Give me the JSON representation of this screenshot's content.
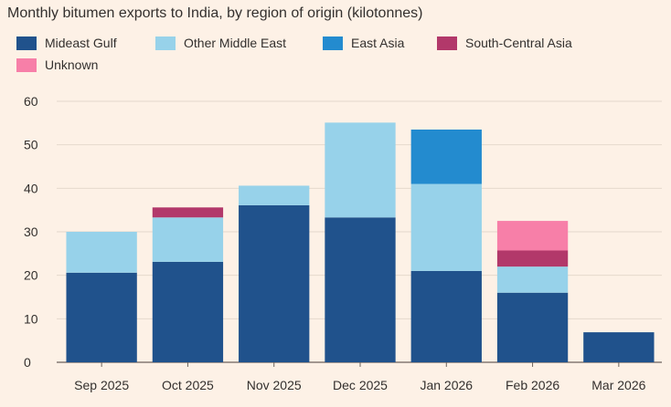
{
  "chart_data": {
    "type": "bar",
    "stacked": true,
    "title": "Monthly bitumen exports to India, by region of origin (kilotonnes)",
    "xlabel": "",
    "ylabel": "",
    "ylim": [
      0,
      60
    ],
    "yticks": [
      "0",
      "10",
      "20",
      "30",
      "40",
      "50",
      "60"
    ],
    "grid": true,
    "legend_position": "top-left",
    "categories": [
      "Sep 2025",
      "Oct 2025",
      "Nov 2025",
      "Dec 2025",
      "Jan 2026",
      "Feb 2026",
      "Mar 2026"
    ],
    "series": [
      {
        "name": "Mideast Gulf",
        "color": "#20528c",
        "values": [
          20.6,
          23.1,
          36.1,
          33.3,
          21.0,
          16.0,
          6.9
        ]
      },
      {
        "name": "Other Middle East",
        "color": "#97d2ea",
        "values": [
          9.4,
          10.2,
          4.5,
          21.8,
          20.0,
          6.0,
          0
        ]
      },
      {
        "name": "East Asia",
        "color": "#238bcf",
        "values": [
          0,
          0,
          0,
          0,
          12.5,
          0,
          0
        ]
      },
      {
        "name": "South-Central Asia",
        "color": "#b2386a",
        "values": [
          0,
          2.3,
          0,
          0,
          0,
          3.7,
          0
        ]
      },
      {
        "name": "Unknown",
        "color": "#f77fa8",
        "values": [
          0,
          0,
          0,
          0,
          0,
          6.8,
          0
        ]
      }
    ],
    "style": {
      "grid_color": "#e4d8cc",
      "axis_color": "#6b625c"
    }
  }
}
